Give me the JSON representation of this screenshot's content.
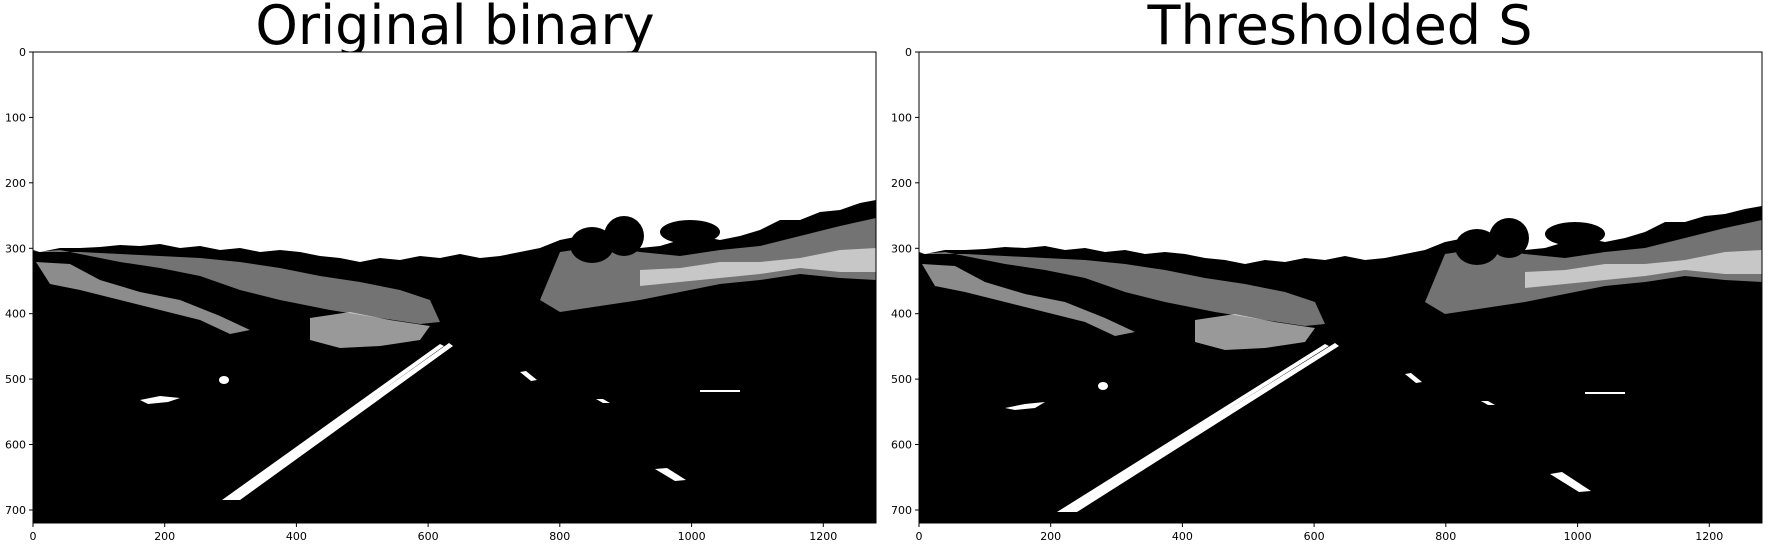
{
  "panels": [
    {
      "title": "Original binary",
      "x_ticks": [
        "0",
        "200",
        "400",
        "600",
        "800",
        "1000",
        "1200"
      ],
      "y_ticks": [
        "0",
        "100",
        "200",
        "300",
        "400",
        "500",
        "600",
        "700"
      ],
      "x_tick_values": [
        0,
        200,
        400,
        600,
        800,
        1000,
        1200
      ],
      "y_tick_values": [
        0,
        100,
        200,
        300,
        400,
        500,
        600,
        700
      ],
      "xlim": [
        0,
        1280
      ],
      "ylim": [
        720,
        0
      ]
    },
    {
      "title": "Thresholded S",
      "x_ticks": [
        "0",
        "200",
        "400",
        "600",
        "800",
        "1000",
        "1200"
      ],
      "y_ticks": [
        "0",
        "100",
        "200",
        "300",
        "400",
        "500",
        "600",
        "700"
      ],
      "x_tick_values": [
        0,
        200,
        400,
        600,
        800,
        1000,
        1200
      ],
      "y_tick_values": [
        0,
        100,
        200,
        300,
        400,
        500,
        600,
        700
      ],
      "xlim": [
        0,
        1280
      ],
      "ylim": [
        720,
        0
      ]
    }
  ],
  "colors": {
    "background": "#ffffff",
    "mask_on": "#ffffff",
    "mask_off": "#000000"
  }
}
